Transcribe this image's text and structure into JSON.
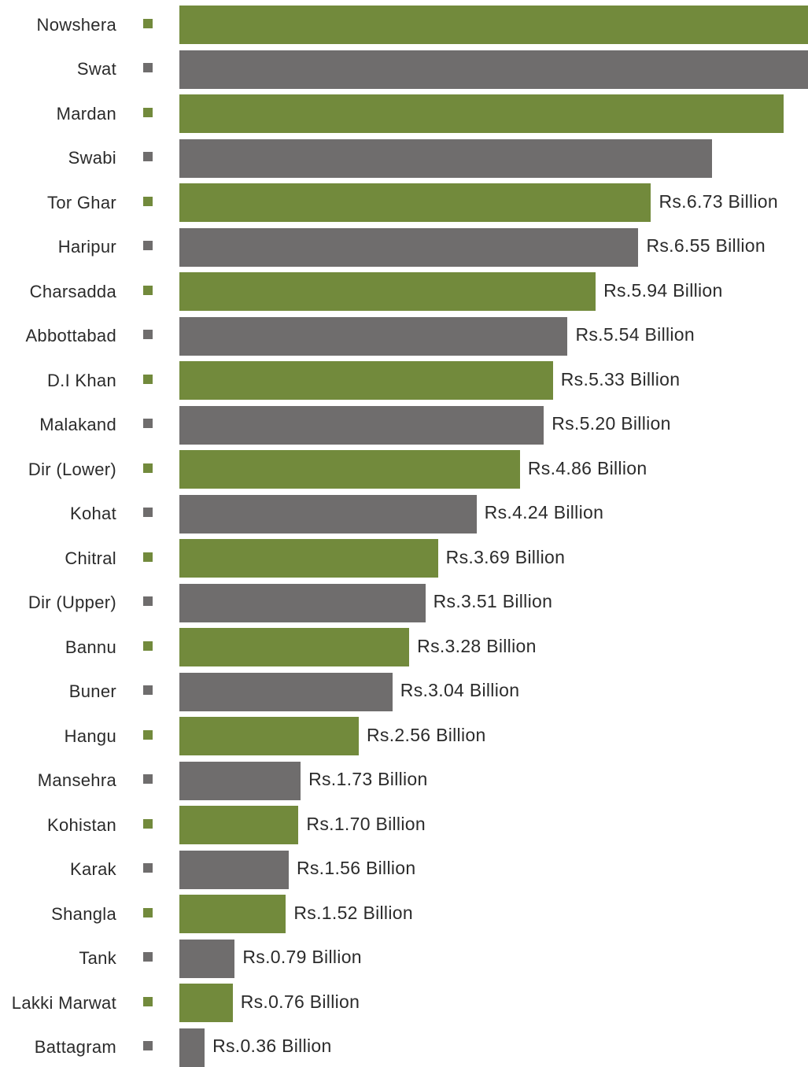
{
  "chart_data": {
    "type": "bar",
    "orientation": "horizontal",
    "categories": [
      "Nowshera",
      "Swat",
      "Mardan",
      "Swabi",
      "Tor Ghar",
      "Haripur",
      "Charsadda",
      "Abbottabad",
      "D.I Khan",
      "Malakand",
      "Dir (Lower)",
      "Kohat",
      "Chitral",
      "Dir (Upper)",
      "Bannu",
      "Buner",
      "Hangu",
      "Mansehra",
      "Kohistan",
      "Karak",
      "Shangla",
      "Tank",
      "Lakki Marwat",
      "Battagram"
    ],
    "values": [
      8.97,
      8.97,
      8.62,
      7.6,
      6.73,
      6.55,
      5.94,
      5.54,
      5.33,
      5.2,
      4.86,
      4.24,
      3.69,
      3.51,
      3.28,
      3.04,
      2.56,
      1.73,
      1.7,
      1.56,
      1.52,
      0.79,
      0.76,
      0.36
    ],
    "value_labels": [
      "",
      "",
      "",
      "",
      "Rs.6.73 Billion",
      "Rs.6.55 Billion",
      "Rs.5.94 Billion",
      "Rs.5.54 Billion",
      "Rs.5.33 Billion",
      "Rs.5.20 Billion",
      "Rs.4.86 Billion",
      "Rs.4.24 Billion",
      "Rs.3.69 Billion",
      "Rs.3.51 Billion",
      "Rs.3.28 Billion",
      "Rs.3.04 Billion",
      "Rs.2.56 Billion",
      "Rs.1.73 Billion",
      "Rs.1.70 Billion",
      "Rs.1.56 Billion",
      "Rs.1.52 Billion",
      "Rs.0.79 Billion",
      "Rs.0.76 Billion",
      "Rs.0.36 Billion"
    ],
    "colors": {
      "green": "#728a3c",
      "gray": "#6f6d6d"
    },
    "color_pattern": [
      "green",
      "gray"
    ],
    "xlim": [
      0,
      8.97
    ],
    "title": "",
    "xlabel": "",
    "ylabel": "",
    "grid": false,
    "legend": "none"
  }
}
